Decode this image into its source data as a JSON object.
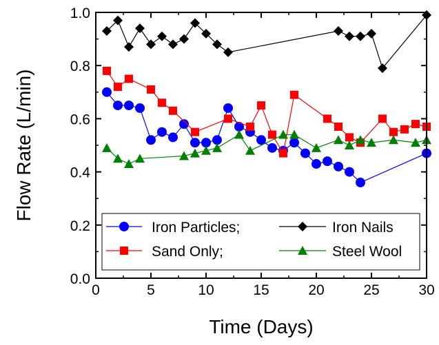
{
  "chart_data": {
    "type": "line",
    "title": "",
    "xlabel": "Time (Days)",
    "ylabel": "Flow Rate (L/min)",
    "xlim": [
      0,
      30
    ],
    "ylim": [
      0,
      1.0
    ],
    "xticks": [
      0,
      5,
      10,
      15,
      20,
      25,
      30
    ],
    "yticks": [
      0.0,
      0.2,
      0.4,
      0.6,
      0.8,
      1.0
    ],
    "xtick_labels": [
      "0",
      "5",
      "10",
      "15",
      "20",
      "25",
      "30"
    ],
    "ytick_labels": [
      "0.0",
      "0.2",
      "0.4",
      "0.6",
      "0.8",
      "1.0"
    ],
    "grid": false,
    "legend_position": "bottom",
    "series": [
      {
        "name": "Iron Particles;",
        "color": "#0000ff",
        "marker": "circle",
        "x": [
          1,
          2,
          3,
          4,
          5,
          6,
          7,
          8,
          9,
          10,
          11,
          12,
          13,
          14,
          15,
          16,
          17,
          18,
          19,
          20,
          21,
          22,
          23,
          24,
          30
        ],
        "y": [
          0.7,
          0.65,
          0.65,
          0.64,
          0.52,
          0.55,
          0.53,
          0.58,
          0.51,
          0.51,
          0.52,
          0.64,
          0.57,
          0.55,
          0.52,
          0.49,
          0.48,
          0.51,
          0.47,
          0.43,
          0.44,
          0.42,
          0.4,
          0.36,
          0.47
        ]
      },
      {
        "name": "Iron Nails",
        "color": "#000000",
        "marker": "diamond",
        "x": [
          1,
          2,
          3,
          4,
          5,
          6,
          7,
          8,
          9,
          10,
          11,
          12,
          22,
          23,
          24,
          25,
          26,
          30
        ],
        "y": [
          0.93,
          0.97,
          0.87,
          0.94,
          0.88,
          0.91,
          0.88,
          0.9,
          0.96,
          0.92,
          0.88,
          0.85,
          0.93,
          0.91,
          0.91,
          0.92,
          0.79,
          0.99
        ]
      },
      {
        "name": "Sand Only;",
        "color": "#ff0000",
        "marker": "square",
        "x": [
          1,
          2,
          3,
          5,
          6,
          7,
          9,
          12,
          14,
          15,
          16,
          17,
          18,
          21,
          22,
          23,
          24,
          26,
          27,
          28,
          29,
          30
        ],
        "y": [
          0.78,
          0.72,
          0.75,
          0.71,
          0.66,
          0.63,
          0.55,
          0.6,
          0.57,
          0.65,
          0.54,
          0.47,
          0.69,
          0.6,
          0.57,
          0.53,
          0.51,
          0.6,
          0.55,
          0.56,
          0.58,
          0.57
        ]
      },
      {
        "name": "Steel Wool",
        "color": "#008000",
        "marker": "triangle",
        "x": [
          1,
          2,
          3,
          4,
          8,
          9,
          10,
          11,
          13,
          14,
          17,
          18,
          20,
          22,
          23,
          24,
          25,
          27,
          29,
          30
        ],
        "y": [
          0.49,
          0.45,
          0.43,
          0.45,
          0.46,
          0.47,
          0.48,
          0.49,
          0.54,
          0.48,
          0.54,
          0.54,
          0.49,
          0.52,
          0.5,
          0.52,
          0.51,
          0.52,
          0.51,
          0.52
        ]
      }
    ]
  }
}
